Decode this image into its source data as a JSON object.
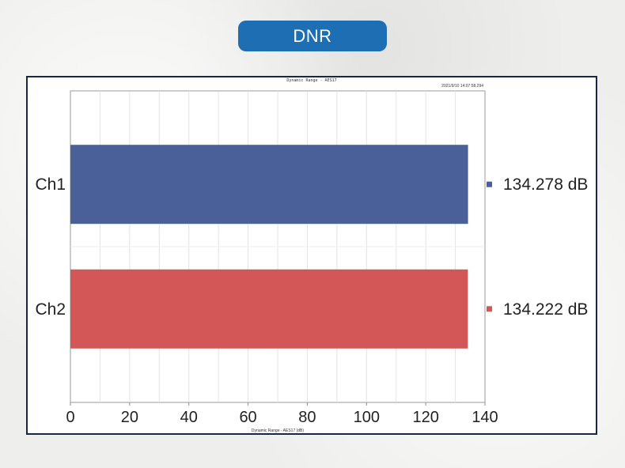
{
  "header": {
    "badge": "DNR"
  },
  "chart_meta": {
    "timestamp": "2021/9/10 14:07:58.294",
    "ap_icon": "ap-logo-icon"
  },
  "chart_data": {
    "type": "bar",
    "orientation": "horizontal",
    "title": "Dynamic Range - AES17",
    "xlabel": "Dynamic Range - AES17 (dB)",
    "ylabel": "",
    "categories": [
      "Ch1",
      "Ch2"
    ],
    "values": [
      134.278,
      134.222
    ],
    "value_labels": [
      "134.278 dB",
      "134.222 dB"
    ],
    "colors": [
      "#4a6099",
      "#d25756"
    ],
    "xlim": [
      0,
      140
    ],
    "xticks": [
      0,
      20,
      40,
      60,
      80,
      100,
      120,
      140
    ],
    "grid": true,
    "legend": "right"
  }
}
